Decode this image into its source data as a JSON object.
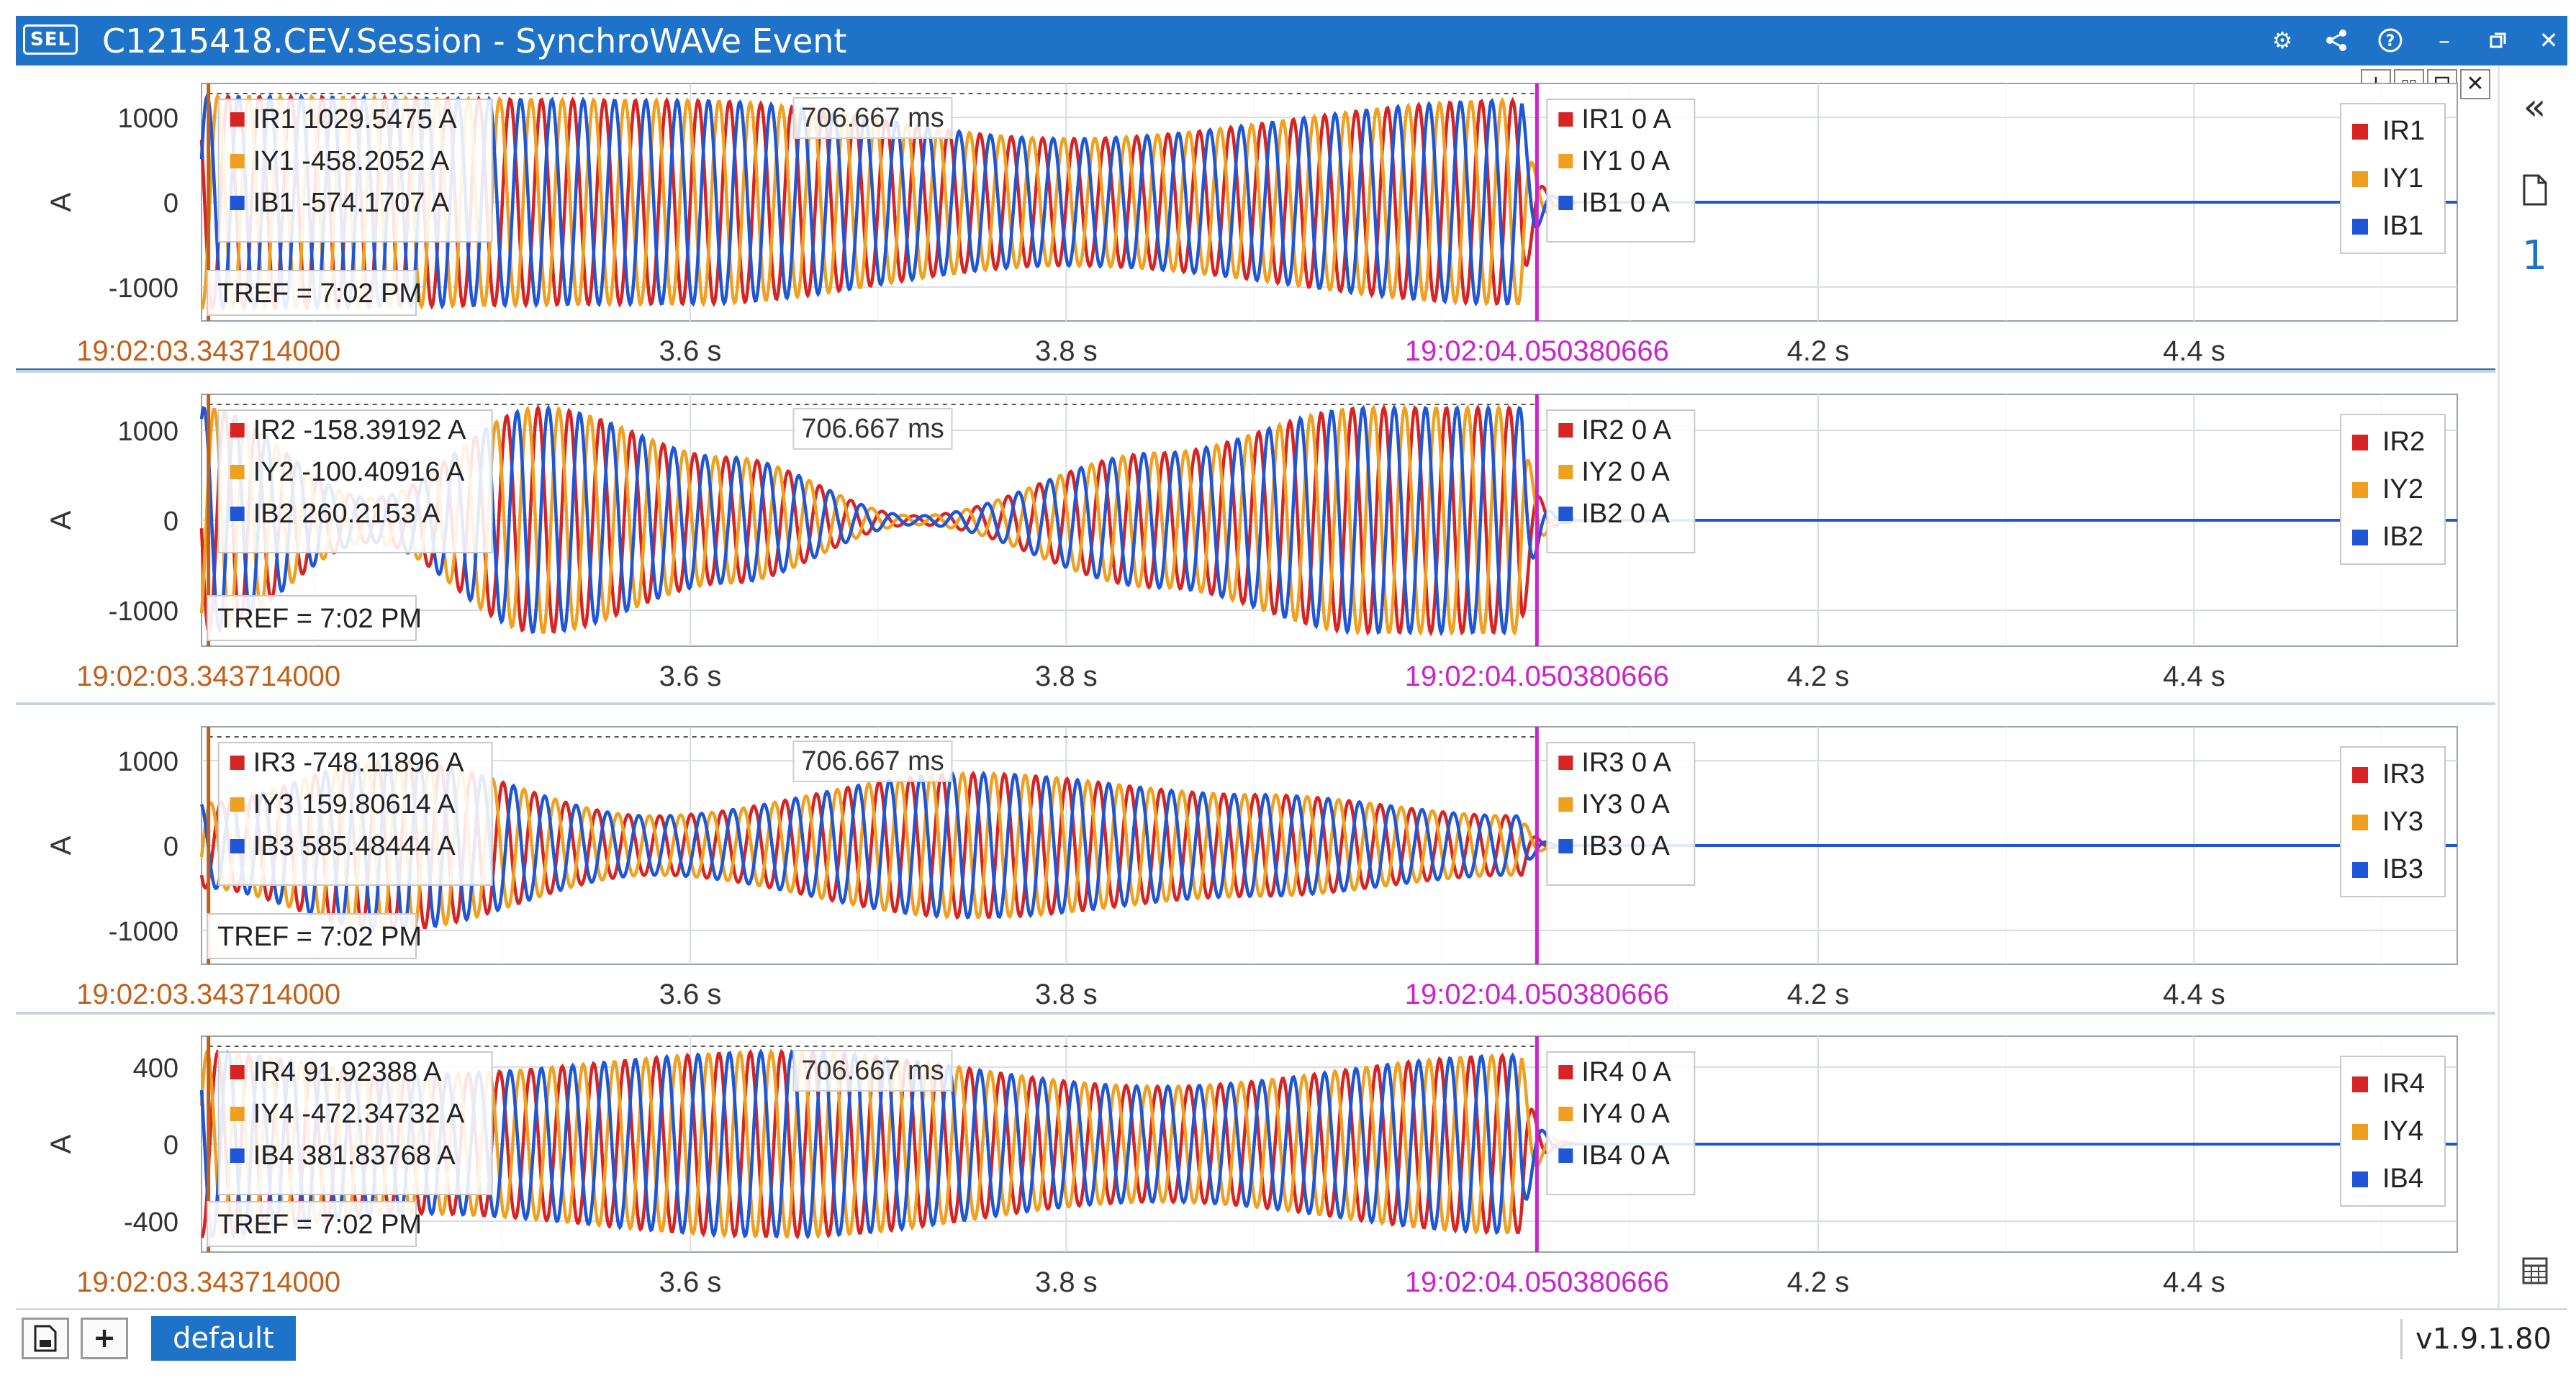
{
  "window": {
    "logo": "SEL",
    "title": "C1215418.CEV.Session - SynchroWAVe Event",
    "controls": [
      "gear-icon",
      "share-icon",
      "help-icon",
      "minimize-icon",
      "restore-icon",
      "close-icon"
    ]
  },
  "panel_tools": [
    "+",
    "▯▯",
    "⊟",
    "✕"
  ],
  "sidebar": {
    "collapse_label": "«",
    "doc_icon": "document-icon",
    "page_number": "1",
    "bottom_icon": "calculator-icon"
  },
  "statusbar": {
    "save_icon": "save-icon",
    "add_label": "+",
    "layout_tab": "default",
    "version": "v1.9.1.80"
  },
  "colors": {
    "accent": "#1e73c8",
    "phase_r": "#d62424",
    "phase_y": "#f0a020",
    "phase_b": "#1f56d6",
    "cursor_left": "#c0601a",
    "cursor_right": "#cc22cc"
  },
  "chart_data": [
    {
      "type": "line",
      "ylabel": "A",
      "yticks": [
        "1000",
        "0",
        "-1000"
      ],
      "ylim": [
        -1400,
        1400
      ],
      "xlim": [
        3.34,
        4.54
      ],
      "xticks": [
        {
          "x": 3.6,
          "label": "3.6 s"
        },
        {
          "x": 3.8,
          "label": "3.8 s"
        },
        {
          "x": 4.2,
          "label": "4.2 s"
        },
        {
          "x": 4.4,
          "label": "4.4 s"
        }
      ],
      "cursor_left": {
        "x": 3.3437,
        "label": "19:02:03.343714000"
      },
      "cursor_right": {
        "x": 4.0504,
        "label": "19:02:04.050380666"
      },
      "delta_label": "706.667 ms",
      "tref_label": "TREF = 7:02 PM",
      "left_readout": [
        "IR1 1029.5475 A",
        "IY1 -458.2052 A",
        "IB1 -574.1707 A"
      ],
      "right_readout": [
        "IR1 0 A",
        "IY1 0 A",
        "IB1 0 A"
      ],
      "legend": [
        "IR1",
        "IY1",
        "IB1"
      ],
      "envelope": {
        "t": [
          3.34,
          3.6,
          3.8,
          4.04
        ],
        "a": [
          1250,
          1200,
          750,
          1200
        ]
      },
      "series": [
        {
          "name": "IR1"
        },
        {
          "name": "IY1"
        },
        {
          "name": "IB1"
        }
      ]
    },
    {
      "type": "line",
      "ylabel": "A",
      "yticks": [
        "1000",
        "0",
        "-1000"
      ],
      "ylim": [
        -1400,
        1400
      ],
      "xlim": [
        3.34,
        4.54
      ],
      "xticks": [
        {
          "x": 3.6,
          "label": "3.6 s"
        },
        {
          "x": 3.8,
          "label": "3.8 s"
        },
        {
          "x": 4.2,
          "label": "4.2 s"
        },
        {
          "x": 4.4,
          "label": "4.4 s"
        }
      ],
      "cursor_left": {
        "x": 3.3437,
        "label": "19:02:03.343714000"
      },
      "cursor_right": {
        "x": 4.0504,
        "label": "19:02:04.050380666"
      },
      "delta_label": "706.667 ms",
      "tref_label": "TREF = 7:02 PM",
      "left_readout": [
        "IR2 -158.39192 A",
        "IY2 -100.40916 A",
        "IB2 260.2153 A"
      ],
      "right_readout": [
        "IR2 0 A",
        "IY2 0 A",
        "IB2 0 A"
      ],
      "legend": [
        "IR2",
        "IY2",
        "IB2"
      ],
      "envelope": {
        "t": [
          3.34,
          3.43,
          3.52,
          3.62,
          3.72,
          3.85,
          3.96,
          4.04
        ],
        "a": [
          1250,
          250,
          1250,
          700,
          50,
          750,
          1250,
          1250
        ]
      },
      "series": [
        {
          "name": "IR2"
        },
        {
          "name": "IY2"
        },
        {
          "name": "IB2"
        }
      ]
    },
    {
      "type": "line",
      "ylabel": "A",
      "yticks": [
        "1000",
        "0",
        "-1000"
      ],
      "ylim": [
        -1400,
        1400
      ],
      "xlim": [
        3.34,
        4.54
      ],
      "xticks": [
        {
          "x": 3.6,
          "label": "3.6 s"
        },
        {
          "x": 3.8,
          "label": "3.8 s"
        },
        {
          "x": 4.2,
          "label": "4.2 s"
        },
        {
          "x": 4.4,
          "label": "4.4 s"
        }
      ],
      "cursor_left": {
        "x": 3.3437,
        "label": "19:02:03.343714000"
      },
      "cursor_right": {
        "x": 4.0504,
        "label": "19:02:04.050380666"
      },
      "delta_label": "706.667 ms",
      "tref_label": "TREF = 7:02 PM",
      "left_readout": [
        "IR3 -748.11896 A",
        "IY3 159.80614 A",
        "IB3 585.48444 A"
      ],
      "right_readout": [
        "IR3 0 A",
        "IY3 0 A",
        "IB3 0 A"
      ],
      "legend": [
        "IR3",
        "IY3",
        "IB3"
      ],
      "envelope": {
        "t": [
          3.34,
          3.44,
          3.58,
          3.75,
          3.9,
          4.04
        ],
        "a": [
          500,
          1000,
          350,
          850,
          600,
          350
        ]
      },
      "series": [
        {
          "name": "IR3"
        },
        {
          "name": "IY3"
        },
        {
          "name": "IB3"
        }
      ]
    },
    {
      "type": "line",
      "ylabel": "A",
      "yticks": [
        "400",
        "0",
        "-400"
      ],
      "ylim": [
        -560,
        560
      ],
      "xlim": [
        3.34,
        4.54
      ],
      "xticks": [
        {
          "x": 3.6,
          "label": "3.6 s"
        },
        {
          "x": 3.8,
          "label": "3.8 s"
        },
        {
          "x": 4.2,
          "label": "4.2 s"
        },
        {
          "x": 4.4,
          "label": "4.4 s"
        }
      ],
      "cursor_left": {
        "x": 3.3437,
        "label": "19:02:03.343714000"
      },
      "cursor_right": {
        "x": 4.0504,
        "label": "19:02:04.050380666"
      },
      "delta_label": "706.667 ms",
      "tref_label": "TREF = 7:02 PM",
      "left_readout": [
        "IR4 91.92388 A",
        "IY4 -472.34732 A",
        "IB4 381.83768 A"
      ],
      "right_readout": [
        "IR4 0 A",
        "IY4 0 A",
        "IB4 0 A"
      ],
      "legend": [
        "IR4",
        "IY4",
        "IB4"
      ],
      "envelope": {
        "t": [
          3.34,
          3.45,
          3.65,
          3.85,
          4.04
        ],
        "a": [
          480,
          360,
          480,
          300,
          460
        ]
      },
      "series": [
        {
          "name": "IR4"
        },
        {
          "name": "IY4"
        },
        {
          "name": "IB4"
        }
      ]
    }
  ]
}
